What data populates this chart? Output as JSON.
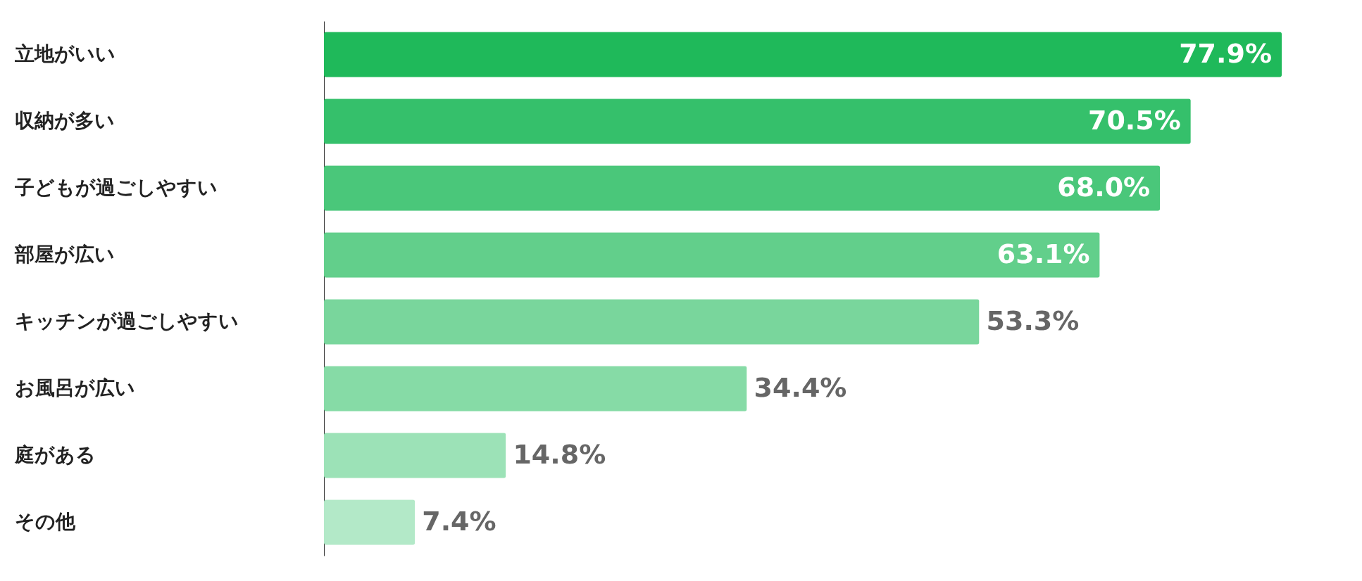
{
  "chart_data": {
    "type": "bar",
    "orientation": "horizontal",
    "categories": [
      "立地がいい",
      "収納が多い",
      "子どもが過ごしやすい",
      "部屋が広い",
      "キッチンが過ごしやすい",
      "お風呂が広い",
      "庭がある",
      "その他"
    ],
    "values": [
      77.9,
      70.5,
      68.0,
      63.1,
      53.3,
      34.4,
      14.8,
      7.4
    ],
    "colors": [
      "#1fb95a",
      "#35c06b",
      "#4ac77a",
      "#62cf8b",
      "#79d69c",
      "#86dba6",
      "#9ce2b7",
      "#b3e9c8"
    ],
    "value_labels": [
      "77.9%",
      "70.5%",
      "68.0%",
      "63.1%",
      "53.3%",
      "34.4%",
      "14.8%",
      "7.4%"
    ]
  }
}
